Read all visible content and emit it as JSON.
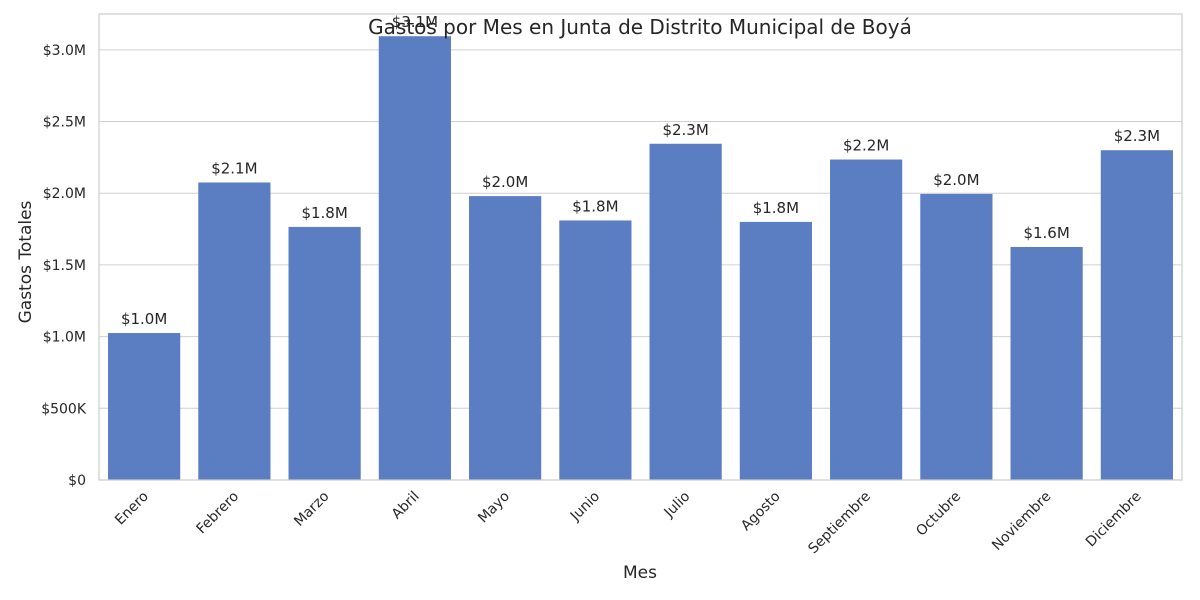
{
  "chart_data": {
    "type": "bar",
    "title": "Gastos por Mes en Junta de Distrito Municipal de Boyá",
    "xlabel": "Mes",
    "ylabel": "Gastos Totales",
    "categories": [
      "Enero",
      "Febrero",
      "Marzo",
      "Abril",
      "Mayo",
      "Junio",
      "Julio",
      "Agosto",
      "Septiembre",
      "Octubre",
      "Noviembre",
      "Diciembre"
    ],
    "values": [
      1025000,
      2075000,
      1765000,
      3095000,
      1980000,
      1810000,
      2345000,
      1800000,
      2235000,
      1995000,
      1625000,
      2300000
    ],
    "value_labels": [
      "$1.0M",
      "$2.1M",
      "$1.8M",
      "$3.1M",
      "$2.0M",
      "$1.8M",
      "$2.3M",
      "$1.8M",
      "$2.2M",
      "$2.0M",
      "$1.6M",
      "$2.3M"
    ],
    "y_ticks": [
      0,
      500000,
      1000000,
      1500000,
      2000000,
      2500000,
      3000000
    ],
    "y_tick_labels": [
      "$0",
      "$500K",
      "$1.0M",
      "$1.5M",
      "$2.0M",
      "$2.5M",
      "$3.0M"
    ],
    "ylim": [
      0,
      3250000
    ],
    "bar_color": "#5b7ec2",
    "grid": "horizontal"
  }
}
